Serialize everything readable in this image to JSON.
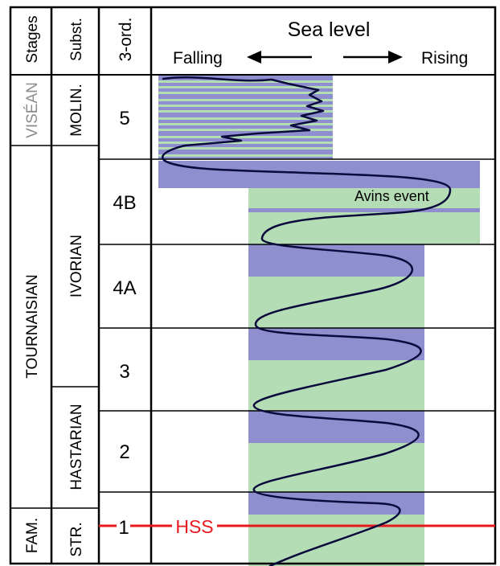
{
  "headers": {
    "stages": "Stages",
    "substages": "Subst.",
    "third_order": "3-ord.",
    "sea_level_title": "Sea level",
    "falling": "Falling",
    "rising": "Rising"
  },
  "stages": [
    "VISÉAN",
    "TOURNAISIAN",
    "FAM."
  ],
  "substages": [
    "MOLIN.",
    "IVORIAN",
    "HASTARIAN",
    "STR."
  ],
  "sequences": [
    "5",
    "4B",
    "4A",
    "3",
    "2",
    "1"
  ],
  "annotations": {
    "avins_event": "Avins event",
    "hss": "HSS"
  },
  "colors": {
    "transgressive_blue": "#8f8fcf",
    "regressive_green": "#b5ddb5",
    "curve": "#0a0a3c",
    "hss_line": "#e8191e",
    "grey_text": "#8c8c8c"
  }
}
